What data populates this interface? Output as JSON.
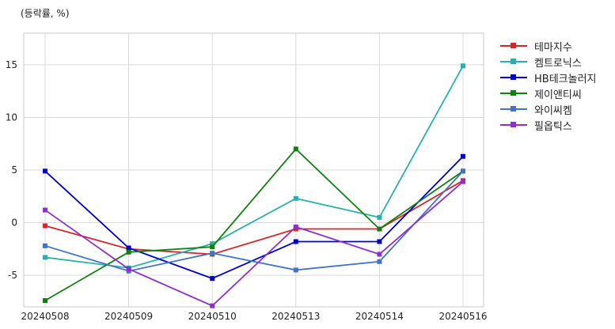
{
  "chart_data": {
    "type": "line",
    "unit_label": "(등락률, %)",
    "categories": [
      "20240508",
      "20240509",
      "20240510",
      "20240513",
      "20240514",
      "20240516"
    ],
    "ylim": [
      -8,
      18
    ],
    "yticks": [
      -5,
      0,
      5,
      10,
      15
    ],
    "grid": true,
    "legend_position": "outside-right",
    "series": [
      {
        "name": "테마지수",
        "color": "#d62728",
        "values": [
          -0.3,
          -2.5,
          -3.0,
          -0.6,
          -0.6,
          4.0
        ]
      },
      {
        "name": "켐트로닉스",
        "color": "#2ab0ac",
        "values": [
          -3.3,
          -4.3,
          -2.0,
          2.3,
          0.5,
          14.9
        ]
      },
      {
        "name": "HB테크놀러지",
        "color": "#0000cc",
        "values": [
          4.9,
          -2.4,
          -5.3,
          -1.8,
          -1.8,
          6.3
        ]
      },
      {
        "name": "제이앤티씨",
        "color": "#108010",
        "values": [
          -7.4,
          -2.8,
          -2.3,
          7.0,
          -0.6,
          4.9
        ]
      },
      {
        "name": "와이씨켐",
        "color": "#4472c4",
        "values": [
          -2.2,
          -4.6,
          -2.9,
          -4.5,
          -3.7,
          4.9
        ]
      },
      {
        "name": "필옵틱스",
        "color": "#8e2ecc",
        "values": [
          1.2,
          -4.4,
          -7.9,
          -0.4,
          -3.0,
          3.9
        ]
      }
    ]
  }
}
